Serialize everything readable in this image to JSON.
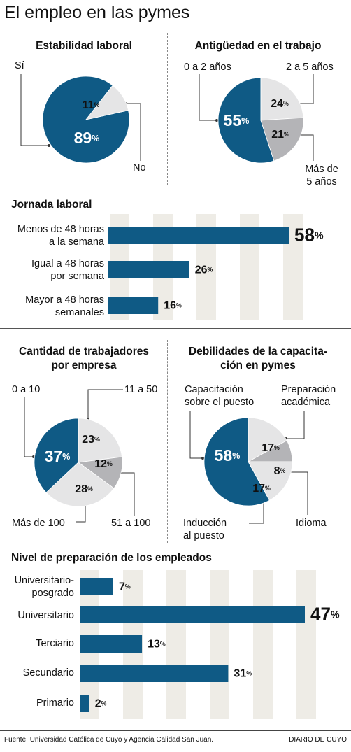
{
  "page": {
    "title": "El empleo en las pymes"
  },
  "footer": {
    "source": "Fuente: Universidad Católica de Cuyo y Agencia Calidad San Juan.",
    "brand": "DIARIO DE CUYO"
  },
  "colors": {
    "dark": "#0f5a85",
    "light": "#e5e5e6",
    "mid": "#b4b4b7",
    "band": "#eeece6",
    "text": "#111111"
  },
  "pies": [
    {
      "title_lines": [
        "Estabilidad laboral"
      ],
      "labels": [
        "Sí",
        "No"
      ],
      "slices": [
        {
          "value": 89,
          "pct_label": "89",
          "label": "Sí"
        },
        {
          "value": 11,
          "pct_label": "11",
          "label": "No"
        }
      ]
    },
    {
      "title_lines": [
        "Antigüedad en el trabajo"
      ],
      "labels": [
        "0 a 2 años",
        "2 a 5 años",
        "Más de",
        "5 años"
      ],
      "slices": [
        {
          "value": 55,
          "pct_label": "55",
          "label": "0 a 2 años"
        },
        {
          "value": 24,
          "pct_label": "24",
          "label": "2 a 5 años"
        },
        {
          "value": 21,
          "pct_label": "21",
          "label": "Más de 5 años"
        }
      ]
    },
    {
      "title_lines": [
        "Cantidad de trabajadores",
        "por empresa"
      ],
      "labels": [
        "0 a 10",
        "11 a 50",
        "Más de 100",
        "51 a 100"
      ],
      "slices": [
        {
          "value": 37,
          "pct_label": "37",
          "label": "0 a 10"
        },
        {
          "value": 23,
          "pct_label": "23",
          "label": "11 a 50"
        },
        {
          "value": 12,
          "pct_label": "12",
          "label": "51 a 100"
        },
        {
          "value": 28,
          "pct_label": "28",
          "label": "Más de 100"
        }
      ]
    },
    {
      "title_lines": [
        "Debilidades de la capacita-",
        "ción en pymes"
      ],
      "labels": [
        "Capacitación",
        "sobre el puesto",
        "Preparación",
        "académica",
        "Inducción",
        "al puesto",
        "Idioma"
      ],
      "slices": [
        {
          "value": 58,
          "pct_label": "58",
          "label": "Capacitación sobre el puesto"
        },
        {
          "value": 17,
          "pct_label": "17",
          "label": "Preparación académica"
        },
        {
          "value": 8,
          "pct_label": "8",
          "label": "Idioma"
        },
        {
          "value": 17,
          "pct_label": "17",
          "label": "Inducción al puesto"
        }
      ]
    }
  ],
  "bar_sections": [
    {
      "title": "Jornada laboral",
      "max": 58,
      "bars": [
        {
          "label_lines": [
            "Menos de 48 horas",
            "a la semana"
          ],
          "value": 58,
          "pct_label": "58"
        },
        {
          "label_lines": [
            "Igual a 48 horas",
            "por semana"
          ],
          "value": 26,
          "pct_label": "26"
        },
        {
          "label_lines": [
            "Mayor a 48 horas",
            "semanales"
          ],
          "value": 16,
          "pct_label": "16"
        }
      ]
    },
    {
      "title": "Nivel de preparación de los empleados",
      "max": 47,
      "bars": [
        {
          "label_lines": [
            "Universitario-",
            "posgrado"
          ],
          "value": 7,
          "pct_label": "7"
        },
        {
          "label_lines": [
            "Universitario"
          ],
          "value": 47,
          "pct_label": "47"
        },
        {
          "label_lines": [
            "Terciario"
          ],
          "value": 13,
          "pct_label": "13"
        },
        {
          "label_lines": [
            "Secundario"
          ],
          "value": 31,
          "pct_label": "31"
        },
        {
          "label_lines": [
            "Primario"
          ],
          "value": 2,
          "pct_label": "2"
        }
      ]
    }
  ],
  "chart_data": [
    {
      "type": "pie",
      "title": "Estabilidad laboral",
      "categories": [
        "Sí",
        "No"
      ],
      "values": [
        89,
        11
      ],
      "unit": "%"
    },
    {
      "type": "pie",
      "title": "Antigüedad en el trabajo",
      "categories": [
        "0 a 2 años",
        "2 a 5 años",
        "Más de 5 años"
      ],
      "values": [
        55,
        24,
        21
      ],
      "unit": "%"
    },
    {
      "type": "bar",
      "title": "Jornada laboral",
      "categories": [
        "Menos de 48 horas a la semana",
        "Igual a 48 horas por semana",
        "Mayor a 48 horas semanales"
      ],
      "values": [
        58,
        26,
        16
      ],
      "unit": "%"
    },
    {
      "type": "pie",
      "title": "Cantidad de trabajadores por empresa",
      "categories": [
        "0 a 10",
        "11 a 50",
        "51 a 100",
        "Más de 100"
      ],
      "values": [
        37,
        23,
        12,
        28
      ],
      "unit": "%"
    },
    {
      "type": "pie",
      "title": "Debilidades de la capacitación en pymes",
      "categories": [
        "Capacitación sobre el puesto",
        "Preparación académica",
        "Idioma",
        "Inducción al puesto"
      ],
      "values": [
        58,
        17,
        8,
        17
      ],
      "unit": "%"
    },
    {
      "type": "bar",
      "title": "Nivel de preparación de los empleados",
      "categories": [
        "Universitario-posgrado",
        "Universitario",
        "Terciario",
        "Secundario",
        "Primario"
      ],
      "values": [
        7,
        47,
        13,
        31,
        2
      ],
      "unit": "%"
    }
  ]
}
